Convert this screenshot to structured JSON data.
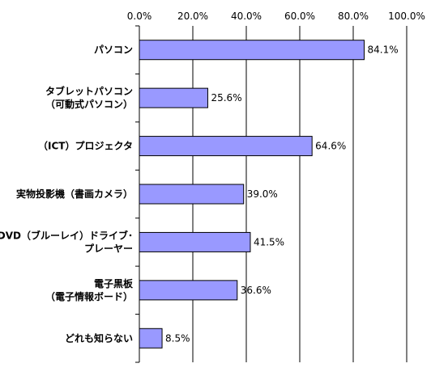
{
  "chart_data": {
    "type": "bar",
    "orientation": "horizontal",
    "title": "",
    "xlabel": "",
    "ylabel": "",
    "xlim": [
      0,
      100
    ],
    "x_ticks": [
      "0.0%",
      "20.0%",
      "40.0%",
      "60.0%",
      "80.0%",
      "100.0%"
    ],
    "x_tick_values": [
      0,
      20,
      40,
      60,
      80,
      100
    ],
    "grid": true,
    "legend": "none",
    "bar_color": "#9999ff",
    "categories": [
      [
        "パソコン"
      ],
      [
        "タブレットパソコン",
        "（可動式パソコン）"
      ],
      [
        "（ICT）プロジェクタ"
      ],
      [
        "実物投影機（書画カメラ）"
      ],
      [
        "DVD（ブルーレイ）ドライブ･",
        "プレーヤー"
      ],
      [
        "電子黒板",
        "（電子情報ボード）"
      ],
      [
        "どれも知らない"
      ]
    ],
    "values": [
      84.1,
      25.6,
      64.6,
      39.0,
      41.5,
      36.6,
      8.5
    ],
    "value_labels": [
      "84.1%",
      "25.6%",
      "64.6%",
      "39.0%",
      "41.5%",
      "36.6%",
      "8.5%"
    ]
  }
}
